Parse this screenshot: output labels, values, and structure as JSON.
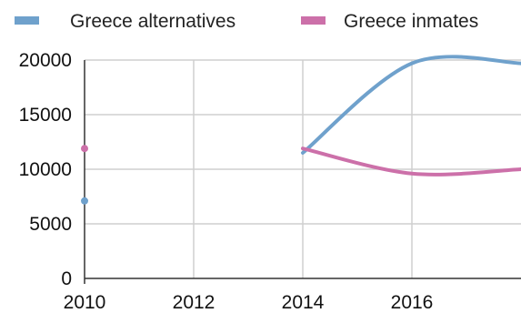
{
  "chart_data": {
    "type": "line",
    "title": "",
    "xlabel": "",
    "ylabel": "",
    "xlim": [
      2010,
      2018
    ],
    "ylim": [
      0,
      20000
    ],
    "x_ticks": [
      "2010",
      "2012",
      "2014",
      "2016"
    ],
    "y_ticks": [
      "0",
      "5000",
      "10000",
      "15000",
      "20000"
    ],
    "grid": true,
    "legend": {
      "position": "top",
      "entries": [
        "Greece alternatives",
        "Greece inmates"
      ]
    },
    "series": [
      {
        "name": "Greece alternatives",
        "color": "#6FA1CC",
        "points": [
          {
            "x": 2010,
            "y": 7100
          },
          {
            "x": 2014,
            "y": 11500
          },
          {
            "x": 2016,
            "y": 19700
          },
          {
            "x": 2018,
            "y": 19700
          }
        ]
      },
      {
        "name": "Greece inmates",
        "color": "#CC70A9",
        "points": [
          {
            "x": 2010,
            "y": 11900
          },
          {
            "x": 2014,
            "y": 11900
          },
          {
            "x": 2016,
            "y": 9600
          },
          {
            "x": 2018,
            "y": 10000
          }
        ]
      }
    ]
  }
}
